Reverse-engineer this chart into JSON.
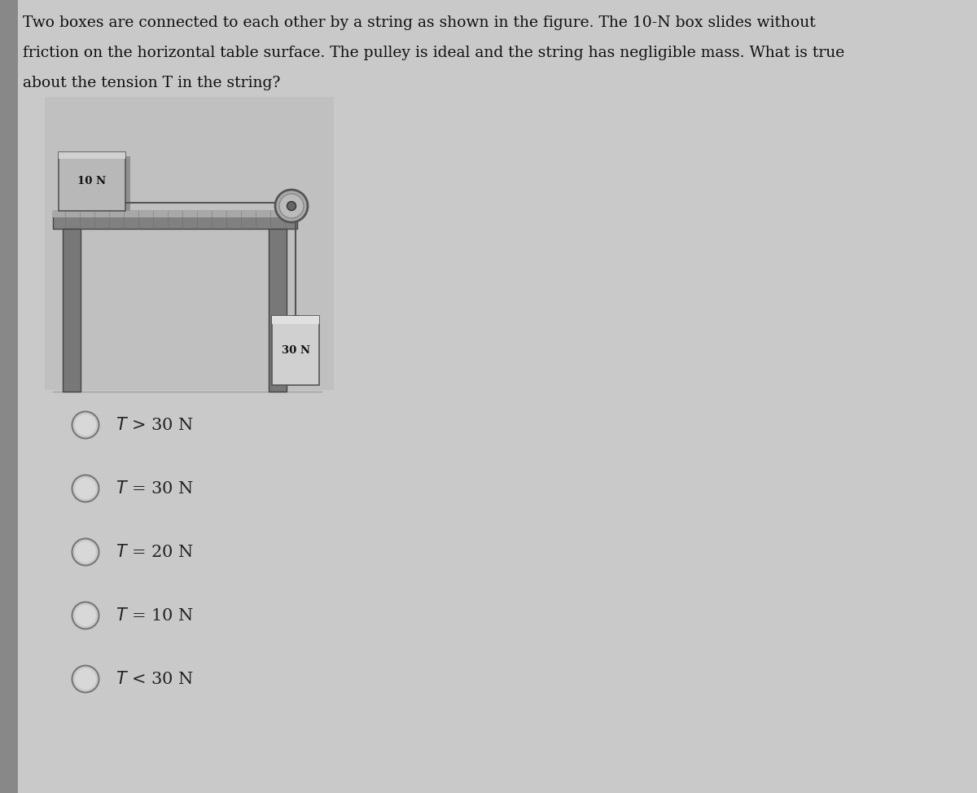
{
  "background_color": "#c9c9c9",
  "question_line1": "Two boxes are connected to each other by a string as shown in the figure. The 10-N box slides without",
  "question_line2": "friction on the horizontal table surface. The pulley is ideal and the string has negligible mass. What is true",
  "question_line3": "about the tension Τ in the string?",
  "box1_label": "10 N",
  "box2_label": "30 N",
  "options": [
    "$T$ > 30 N",
    "$T$ = 30 N",
    "$T$ = 20 N",
    "$T$ = 10 N",
    "$T$ < 30 N"
  ],
  "text_color": "#111111",
  "option_text_color": "#222222",
  "title_fontsize": 13.5,
  "option_fontsize": 15,
  "fig_width": 12.0,
  "fig_height": 9.74,
  "left_bar_color": "#aaaaaa",
  "table_surface_color": "#909090",
  "table_leg_color": "#888888",
  "box1_color": "#b0b0b0",
  "box2_color": "#c8c8c8",
  "pulley_color": "#aaaaaa",
  "string_color": "#555555",
  "diagram_bg": "#c4c4c4"
}
